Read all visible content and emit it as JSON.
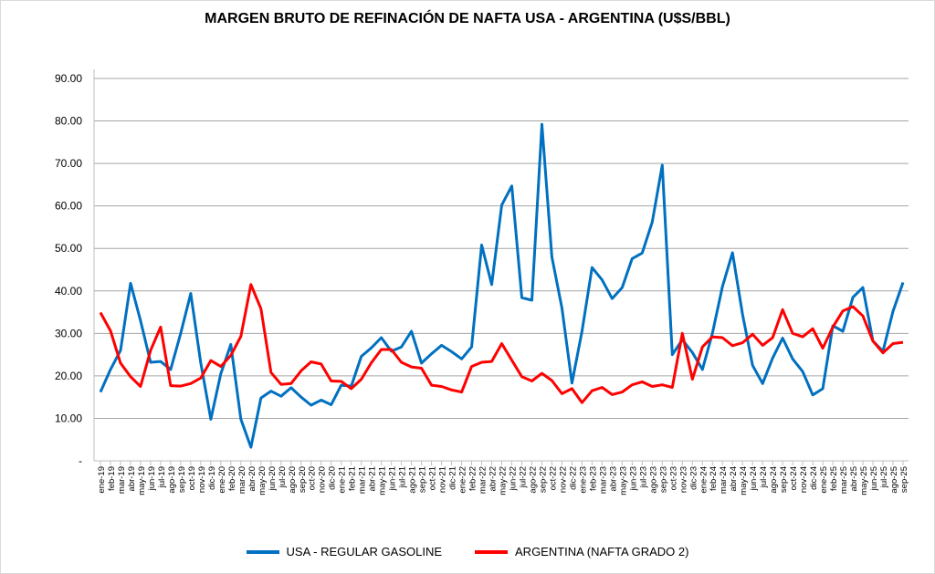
{
  "chart_data": {
    "type": "line",
    "title": "MARGEN BRUTO DE REFINACIÓN DE NAFTA USA - ARGENTINA (U$S/BBL)",
    "xlabel": "",
    "ylabel": "",
    "ylim": [
      0,
      90
    ],
    "yticks": [
      {
        "value": 0,
        "label": "-"
      },
      {
        "value": 10,
        "label": "10.00"
      },
      {
        "value": 20,
        "label": "20.00"
      },
      {
        "value": 30,
        "label": "30.00"
      },
      {
        "value": 40,
        "label": "40.00"
      },
      {
        "value": 50,
        "label": "50.00"
      },
      {
        "value": 60,
        "label": "60.00"
      },
      {
        "value": 70,
        "label": "70.00"
      },
      {
        "value": 80,
        "label": "80.00"
      },
      {
        "value": 90,
        "label": "90.00"
      }
    ],
    "grid": true,
    "legend_position": "bottom",
    "x": [
      "ene-19",
      "feb-19",
      "mar-19",
      "abr-19",
      "may-19",
      "jun-19",
      "jul-19",
      "ago-19",
      "sep-19",
      "oct-19",
      "nov-19",
      "dic-19",
      "ene-20",
      "feb-20",
      "mar-20",
      "abr-20",
      "may-20",
      "jun-20",
      "jul-20",
      "ago-20",
      "sep-20",
      "oct-20",
      "nov-20",
      "dic-20",
      "ene-21",
      "feb-21",
      "mar-21",
      "abr-21",
      "may-21",
      "jun-21",
      "jul-21",
      "ago-21",
      "sep-21",
      "oct-21",
      "nov-21",
      "dic-21",
      "ene-22",
      "feb-22",
      "mar-22",
      "abr-22",
      "may-22",
      "jun-22",
      "jul-22",
      "ago-22",
      "sep-22",
      "oct-22",
      "nov-22",
      "dic-22",
      "ene-23",
      "feb-23",
      "mar-23",
      "abr-23",
      "may-23",
      "jun-23",
      "jul-23",
      "ago-23",
      "sep-23",
      "oct-23",
      "nov-23",
      "dic-23",
      "ene-24",
      "feb-24",
      "mar-24",
      "abr-24",
      "may-24",
      "jun-24",
      "jul-24",
      "ago-24",
      "sep-24",
      "oct-24",
      "nov-24",
      "dic-24",
      "ene-25",
      "feb-25",
      "mar-25",
      "abr-25",
      "may-25",
      "jun-25",
      "jul-25",
      "ago-25",
      "sep-25"
    ],
    "series": [
      {
        "name": "USA - REGULAR GASOLINE",
        "color": "#0070c0",
        "values": [
          16.2,
          21.5,
          26,
          41.8,
          33,
          23.2,
          23.4,
          21.5,
          30,
          39.4,
          23,
          9.8,
          20.5,
          27.4,
          9.8,
          3.2,
          14.8,
          16.4,
          15.2,
          17.2,
          15,
          13.1,
          14.3,
          13.2,
          17.8,
          17.6,
          24.6,
          26.6,
          29,
          25.8,
          26.8,
          30.5,
          23,
          25.2,
          27.2,
          25.7,
          24,
          26.8,
          50.8,
          41.5,
          60.2,
          64.7,
          38.4,
          37.8,
          79.2,
          48,
          36,
          18.3,
          30.5,
          45.5,
          42.6,
          38.2,
          40.8,
          47.6,
          48.9,
          56.2,
          69.6,
          25,
          28.5,
          25.5,
          21.5,
          30,
          41,
          49,
          34.5,
          22.5,
          18.2,
          24.2,
          28.9,
          24,
          21,
          15.5,
          17,
          31.8,
          30.5,
          38.5,
          40.8,
          28.2,
          25.8,
          35.2,
          42
        ]
      },
      {
        "name": "ARGENTINA (NAFTA GRADO 2)",
        "color": "#ff0000",
        "values": [
          34.9,
          30.6,
          23,
          19.8,
          17.5,
          26,
          31.5,
          17.7,
          17.6,
          18.2,
          19.5,
          23.6,
          22.2,
          24.8,
          29.3,
          41.5,
          35.8,
          20.8,
          18,
          18.2,
          21.2,
          23.3,
          22.8,
          18.8,
          18.7,
          17,
          19.2,
          23.1,
          26.2,
          26.2,
          23.2,
          22.1,
          21.8,
          17.8,
          17.5,
          16.7,
          16.2,
          22.2,
          23.2,
          23.4,
          27.6,
          23.7,
          19.8,
          18.8,
          20.6,
          18.9,
          15.8,
          17,
          13.7,
          16.5,
          17.3,
          15.6,
          16.2,
          17.9,
          18.6,
          17.5,
          17.9,
          17.3,
          30,
          19.2,
          26.8,
          29.2,
          29,
          27.1,
          27.8,
          29.8,
          27.2,
          29,
          35.6,
          30,
          29.2,
          31.1,
          26.5,
          31.5,
          35.3,
          36.3,
          34.1,
          28.2,
          25.4,
          27.6,
          27.9
        ]
      }
    ]
  }
}
